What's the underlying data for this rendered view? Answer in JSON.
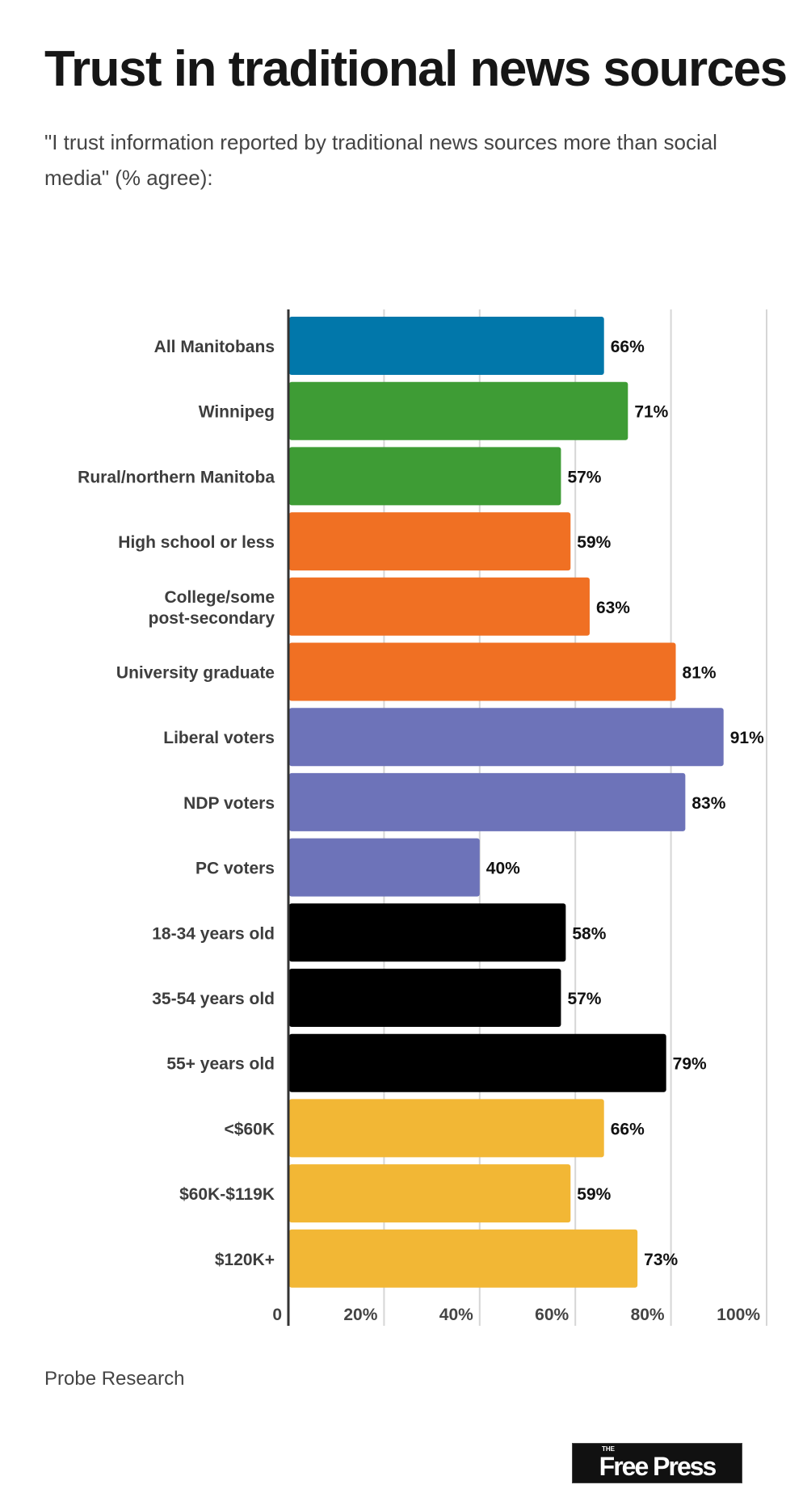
{
  "chart_data": {
    "type": "bar",
    "orientation": "horizontal",
    "title": "Trust in traditional news sources",
    "subtitle": "\"I trust information reported by traditional news sources more than social media\" (% agree):",
    "categories": [
      "All Manitobans",
      "Winnipeg",
      "Rural/northern Manitoba",
      "High school or less",
      "College/some post-secondary",
      "University graduate",
      "Liberal voters",
      "NDP voters",
      "PC voters",
      "18-34 years old",
      "35-54 years old",
      "55+ years old",
      "<$60K",
      "$60K-$119K",
      "$120K+"
    ],
    "category_lines": [
      [
        "All Manitobans"
      ],
      [
        "Winnipeg"
      ],
      [
        "Rural/northern Manitoba"
      ],
      [
        "High school or less"
      ],
      [
        "College/some",
        "post-secondary"
      ],
      [
        "University graduate"
      ],
      [
        "Liberal voters"
      ],
      [
        "NDP voters"
      ],
      [
        "PC voters"
      ],
      [
        "18-34 years old"
      ],
      [
        "35-54 years old"
      ],
      [
        "55+ years old"
      ],
      [
        "<$60K"
      ],
      [
        "$60K-$119K"
      ],
      [
        "$120K+"
      ]
    ],
    "values": [
      66,
      71,
      57,
      59,
      63,
      81,
      91,
      83,
      40,
      58,
      57,
      79,
      66,
      59,
      73
    ],
    "value_labels": [
      "66%",
      "71%",
      "57%",
      "59%",
      "63%",
      "81%",
      "91%",
      "83%",
      "40%",
      "58%",
      "57%",
      "79%",
      "66%",
      "59%",
      "73%"
    ],
    "colors": [
      "#0177aa",
      "#3e9c35",
      "#3e9c35",
      "#f07023",
      "#f07023",
      "#f07023",
      "#6d73b9",
      "#6d73b9",
      "#6d73b9",
      "#000000",
      "#000000",
      "#000000",
      "#f2b735",
      "#f2b735",
      "#f2b735"
    ],
    "xlim": [
      0,
      100
    ],
    "xticks": [
      0,
      20,
      40,
      60,
      80,
      100
    ],
    "xtick_labels": [
      "0",
      "20%",
      "40%",
      "60%",
      "80%",
      "100%"
    ],
    "grid": true,
    "xlabel": "",
    "ylabel": ""
  },
  "source": "Probe Research",
  "logo": {
    "small": "THE",
    "text": "Free Press"
  }
}
